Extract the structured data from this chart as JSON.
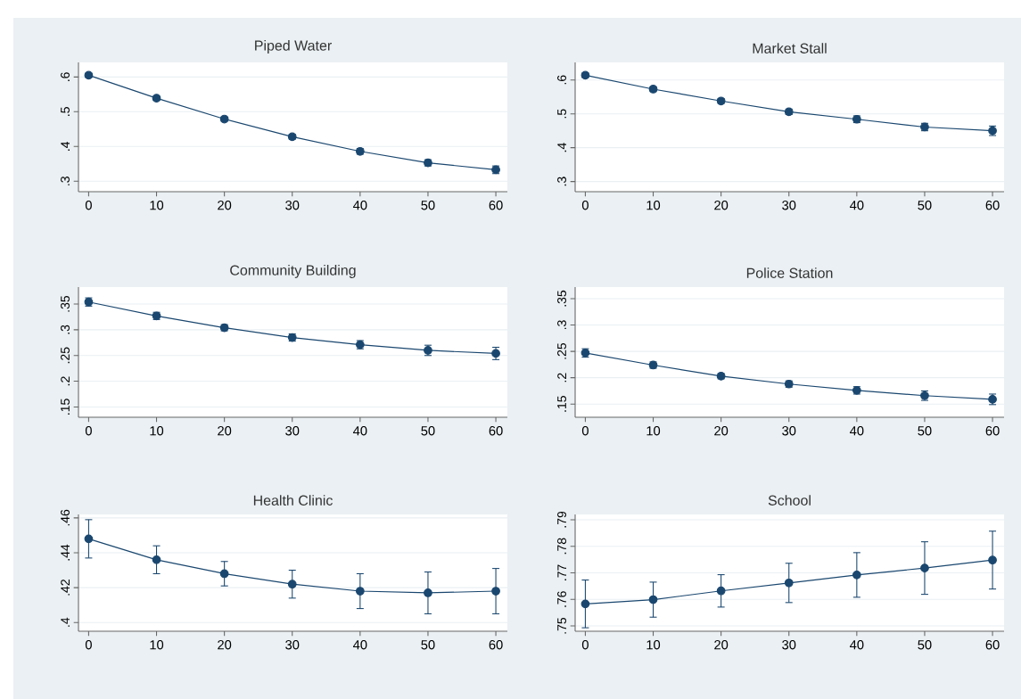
{
  "chart_data": [
    {
      "type": "line",
      "title": "Piped Water",
      "x": [
        0,
        10,
        20,
        30,
        40,
        50,
        60
      ],
      "values": [
        0.605,
        0.539,
        0.479,
        0.428,
        0.386,
        0.353,
        0.333
      ],
      "errors": [
        0.006,
        0.006,
        0.006,
        0.007,
        0.008,
        0.009,
        0.011
      ],
      "color": "#1a476f",
      "marker": "circle",
      "grid": "y",
      "xlim": [
        -1.5,
        61.7
      ],
      "ylim": [
        0.27,
        0.642
      ],
      "xticks": [
        0,
        10,
        20,
        30,
        40,
        50,
        60
      ],
      "yticks": [
        {
          "value": 0.3,
          "label": ".3"
        },
        {
          "value": 0.4,
          "label": ".4"
        },
        {
          "value": 0.5,
          "label": ".5"
        },
        {
          "value": 0.6,
          "label": ".6"
        }
      ]
    },
    {
      "type": "line",
      "title": "Market Stall",
      "x": [
        0,
        10,
        20,
        30,
        40,
        50,
        60
      ],
      "values": [
        0.614,
        0.573,
        0.538,
        0.506,
        0.484,
        0.461,
        0.45
      ],
      "errors": [
        0.007,
        0.007,
        0.007,
        0.008,
        0.01,
        0.011,
        0.014
      ],
      "color": "#1a476f",
      "marker": "circle",
      "grid": "y",
      "xlim": [
        -1.5,
        61.7
      ],
      "ylim": [
        0.27,
        0.652
      ],
      "xticks": [
        0,
        10,
        20,
        30,
        40,
        50,
        60
      ],
      "yticks": [
        {
          "value": 0.3,
          "label": ".3"
        },
        {
          "value": 0.4,
          "label": ".4"
        },
        {
          "value": 0.5,
          "label": ".5"
        },
        {
          "value": 0.6,
          "label": ".6"
        }
      ]
    },
    {
      "type": "line",
      "title": "Community Building",
      "x": [
        0,
        10,
        20,
        30,
        40,
        50,
        60
      ],
      "values": [
        0.354,
        0.327,
        0.304,
        0.285,
        0.271,
        0.26,
        0.254
      ],
      "errors": [
        0.008,
        0.007,
        0.006,
        0.007,
        0.008,
        0.01,
        0.012
      ],
      "color": "#1a476f",
      "marker": "circle",
      "grid": "y",
      "xlim": [
        -1.5,
        61.7
      ],
      "ylim": [
        0.13,
        0.383
      ],
      "xticks": [
        0,
        10,
        20,
        30,
        40,
        50,
        60
      ],
      "yticks": [
        {
          "value": 0.15,
          "label": ".15"
        },
        {
          "value": 0.2,
          "label": ".2"
        },
        {
          "value": 0.25,
          "label": ".25"
        },
        {
          "value": 0.3,
          "label": ".3"
        },
        {
          "value": 0.35,
          "label": ".35"
        }
      ]
    },
    {
      "type": "line",
      "title": "Police Station",
      "x": [
        0,
        10,
        20,
        30,
        40,
        50,
        60
      ],
      "values": [
        0.247,
        0.224,
        0.203,
        0.188,
        0.176,
        0.166,
        0.159
      ],
      "errors": [
        0.008,
        0.006,
        0.005,
        0.006,
        0.007,
        0.009,
        0.01
      ],
      "color": "#1a476f",
      "marker": "circle",
      "grid": "y",
      "xlim": [
        -1.5,
        61.7
      ],
      "ylim": [
        0.125,
        0.372
      ],
      "xticks": [
        0,
        10,
        20,
        30,
        40,
        50,
        60
      ],
      "yticks": [
        {
          "value": 0.15,
          "label": ".15"
        },
        {
          "value": 0.2,
          "label": ".2"
        },
        {
          "value": 0.25,
          "label": ".25"
        },
        {
          "value": 0.3,
          "label": ".3"
        },
        {
          "value": 0.35,
          "label": ".35"
        }
      ]
    },
    {
      "type": "line",
      "title": "Health Clinic",
      "x": [
        0,
        10,
        20,
        30,
        40,
        50,
        60
      ],
      "values": [
        0.448,
        0.436,
        0.428,
        0.422,
        0.418,
        0.417,
        0.418
      ],
      "errors": [
        0.011,
        0.008,
        0.007,
        0.008,
        0.01,
        0.012,
        0.013
      ],
      "color": "#1a476f",
      "marker": "circle",
      "grid": "y",
      "xlim": [
        -1.5,
        61.7
      ],
      "ylim": [
        0.395,
        0.462
      ],
      "xticks": [
        0,
        10,
        20,
        30,
        40,
        50,
        60
      ],
      "yticks": [
        {
          "value": 0.4,
          "label": ".4"
        },
        {
          "value": 0.42,
          "label": ".42"
        },
        {
          "value": 0.44,
          "label": ".44"
        },
        {
          "value": 0.46,
          "label": ".46"
        }
      ]
    },
    {
      "type": "line",
      "title": "School",
      "x": [
        0,
        10,
        20,
        30,
        40,
        50,
        60
      ],
      "values": [
        0.7583,
        0.7599,
        0.7632,
        0.7662,
        0.7692,
        0.7718,
        0.7748
      ],
      "errors": [
        0.009,
        0.0066,
        0.0061,
        0.0074,
        0.0084,
        0.0099,
        0.0109
      ],
      "color": "#1a476f",
      "marker": "circle",
      "grid": "y",
      "xlim": [
        -1.5,
        61.7
      ],
      "ylim": [
        0.748,
        0.792
      ],
      "xticks": [
        0,
        10,
        20,
        30,
        40,
        50,
        60
      ],
      "yticks": [
        {
          "value": 0.75,
          "label": ".75"
        },
        {
          "value": 0.76,
          "label": ".76"
        },
        {
          "value": 0.77,
          "label": ".77"
        },
        {
          "value": 0.78,
          "label": ".78"
        },
        {
          "value": 0.79,
          "label": ".79"
        }
      ]
    }
  ]
}
